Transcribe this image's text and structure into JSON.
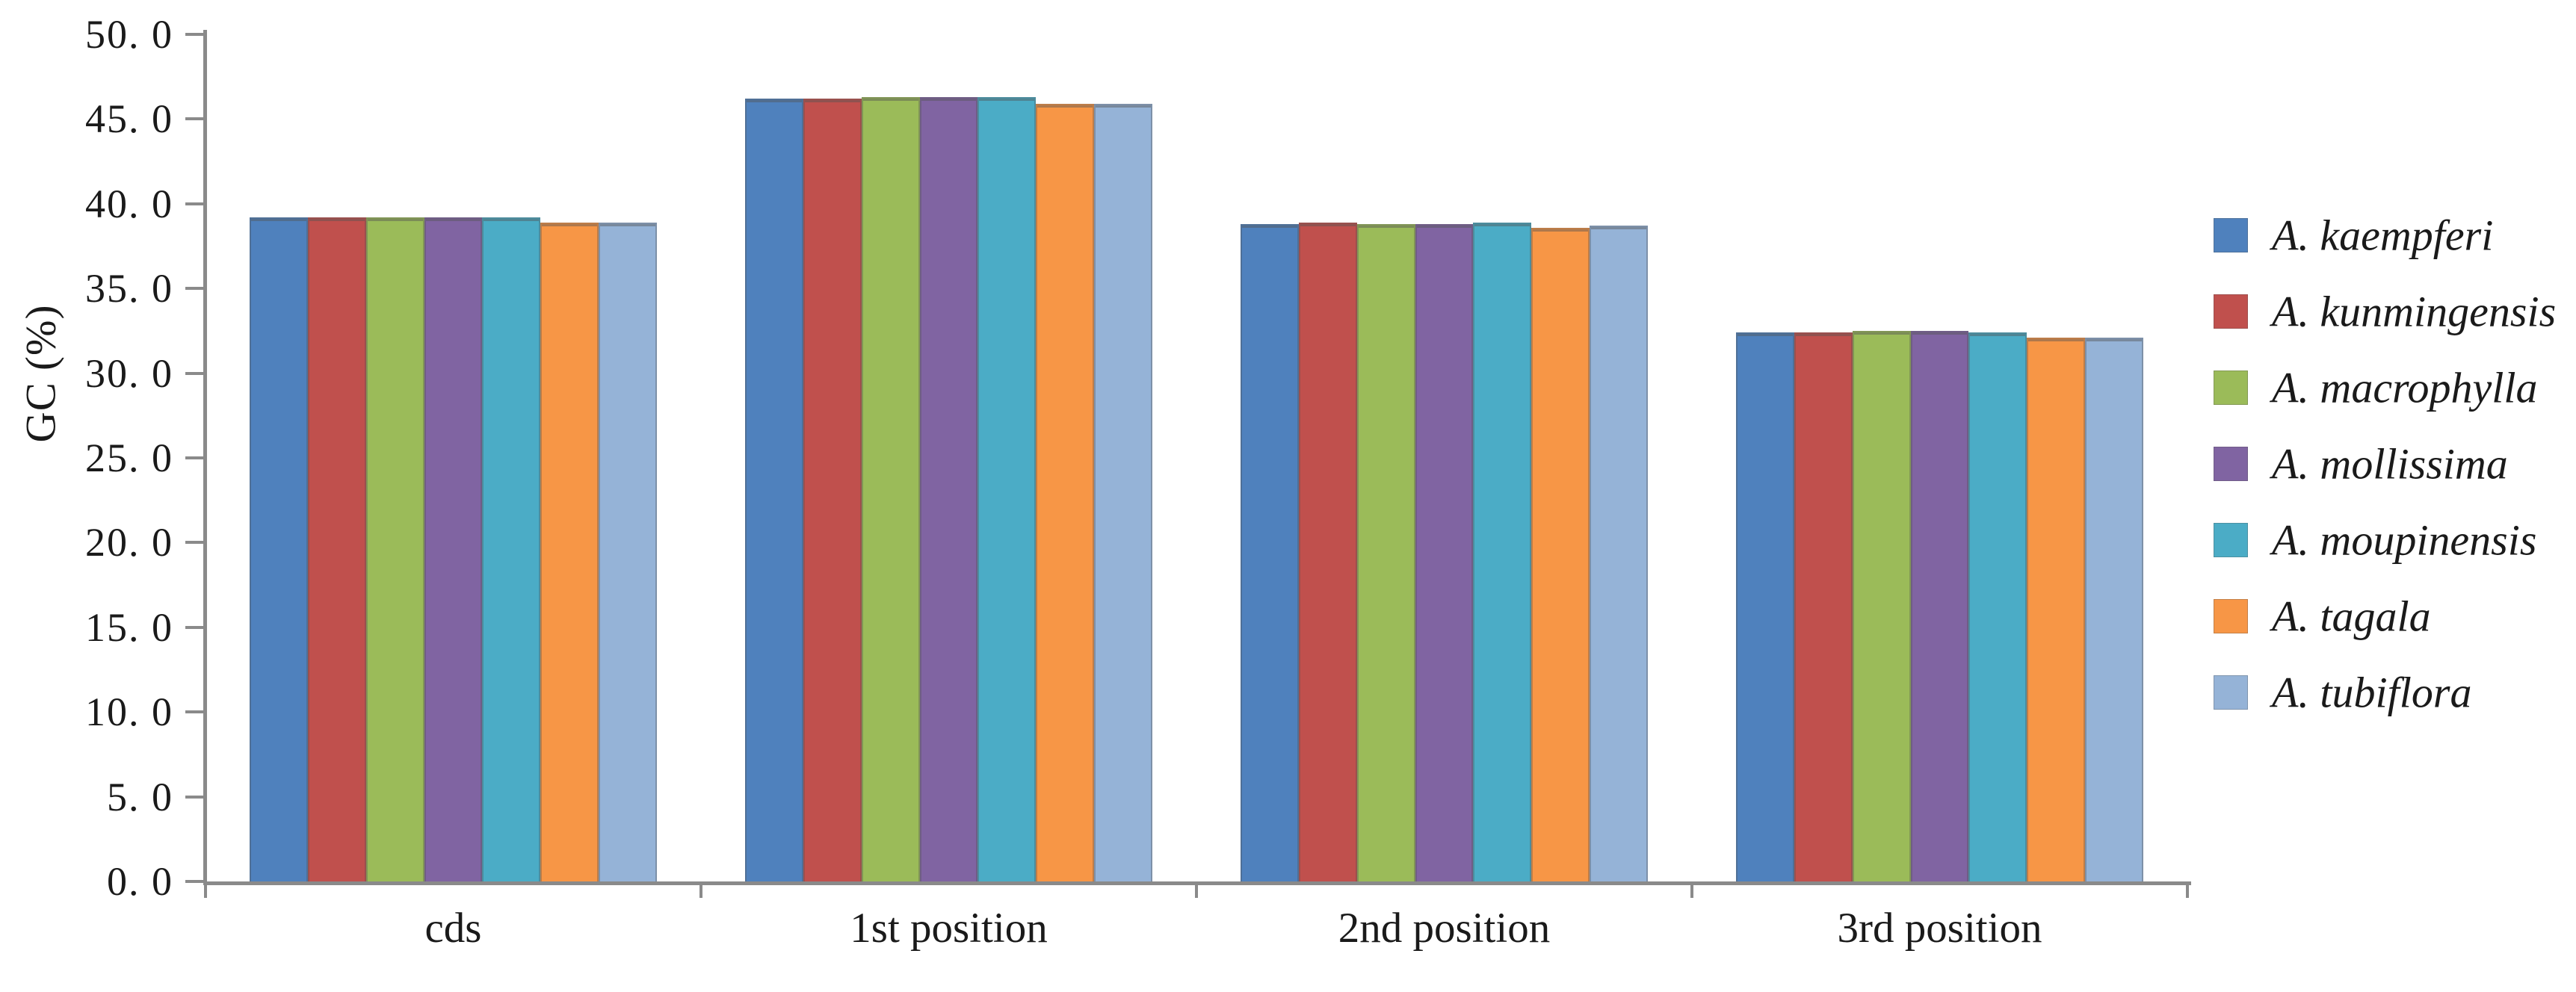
{
  "chart_data": {
    "type": "bar",
    "title": "",
    "ylabel": "GC (%)",
    "xlabel": "",
    "categories": [
      "cds",
      "1st position",
      "2nd position",
      "3rd position"
    ],
    "series": [
      {
        "name": "A. kaempferi",
        "color": "#4F81BD",
        "values": [
          39.2,
          46.2,
          38.8,
          32.4
        ]
      },
      {
        "name": "A. kunmingensis",
        "color": "#C0504D",
        "values": [
          39.2,
          46.2,
          38.9,
          32.4
        ]
      },
      {
        "name": "A. macrophylla",
        "color": "#9BBB59",
        "values": [
          39.2,
          46.3,
          38.8,
          32.5
        ]
      },
      {
        "name": "A. mollissima",
        "color": "#8064A2",
        "values": [
          39.2,
          46.3,
          38.8,
          32.5
        ]
      },
      {
        "name": "A. moupinensis",
        "color": "#4BACC6",
        "values": [
          39.2,
          46.3,
          38.9,
          32.4
        ]
      },
      {
        "name": "A. tagala",
        "color": "#F79646",
        "values": [
          38.9,
          45.9,
          38.6,
          32.1
        ]
      },
      {
        "name": "A. tubiflora",
        "color": "#95B3D7",
        "values": [
          38.9,
          45.9,
          38.7,
          32.1
        ]
      }
    ],
    "ylim": [
      0,
      50
    ],
    "ytick_step": 5,
    "ytick_labels": [
      "0. 0",
      "5. 0",
      "10. 0",
      "15. 0",
      "20. 0",
      "25. 0",
      "30. 0",
      "35. 0",
      "40. 0",
      "45. 0",
      "50. 0"
    ],
    "grid": false,
    "legend_position": "right",
    "axis_color": "#8a8a8a"
  }
}
